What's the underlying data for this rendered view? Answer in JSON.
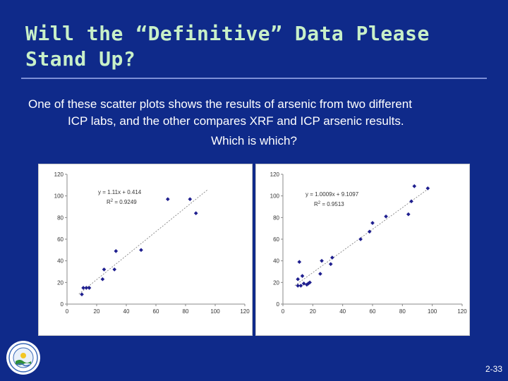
{
  "slide": {
    "title": "Will the “Definitive” Data Please\nStand Up?",
    "intro_line1": "One of these scatter plots shows the results of arsenic from two different",
    "intro_line2": "ICP labs, and the other compares XRF and ICP arsenic results.",
    "question": "Which is which?",
    "slide_number": "2-33",
    "colors": {
      "background": "#0f2a8a",
      "title": "#c8f0c8",
      "point": "#1f1f8f",
      "trendline": "#777777"
    }
  },
  "chart_data": [
    {
      "type": "scatter",
      "xlim": [
        0,
        120
      ],
      "ylim": [
        0,
        120
      ],
      "xticks": [
        0,
        20,
        40,
        60,
        80,
        100,
        120
      ],
      "yticks": [
        0,
        20,
        40,
        60,
        80,
        100,
        120
      ],
      "equation": "y = 1.11x + 0.414",
      "r2_prefix": "R",
      "r2_sup": "2",
      "r2_value": " = 0.9249",
      "trendline": {
        "slope": 1.11,
        "intercept": 0.414,
        "x_range": [
          8,
          95
        ]
      },
      "points": [
        {
          "x": 10,
          "y": 9
        },
        {
          "x": 11,
          "y": 15
        },
        {
          "x": 13,
          "y": 15
        },
        {
          "x": 15,
          "y": 15
        },
        {
          "x": 24,
          "y": 23
        },
        {
          "x": 25,
          "y": 32
        },
        {
          "x": 32,
          "y": 32
        },
        {
          "x": 33,
          "y": 49
        },
        {
          "x": 50,
          "y": 50
        },
        {
          "x": 68,
          "y": 97
        },
        {
          "x": 83,
          "y": 97
        },
        {
          "x": 87,
          "y": 84
        }
      ]
    },
    {
      "type": "scatter",
      "xlim": [
        0,
        120
      ],
      "ylim": [
        0,
        120
      ],
      "xticks": [
        0,
        20,
        40,
        60,
        80,
        100,
        120
      ],
      "yticks": [
        0,
        20,
        40,
        60,
        80,
        100,
        120
      ],
      "equation": "y = 1.0009x + 9.1097",
      "r2_prefix": "R",
      "r2_sup": "2",
      "r2_value": " = 0.9513",
      "trendline": {
        "slope": 1.0009,
        "intercept": 9.1097,
        "x_range": [
          8,
          98
        ]
      },
      "points": [
        {
          "x": 10,
          "y": 17
        },
        {
          "x": 10,
          "y": 23
        },
        {
          "x": 11,
          "y": 39
        },
        {
          "x": 12,
          "y": 17
        },
        {
          "x": 13,
          "y": 26
        },
        {
          "x": 14,
          "y": 19
        },
        {
          "x": 16,
          "y": 18
        },
        {
          "x": 17,
          "y": 19
        },
        {
          "x": 18,
          "y": 20
        },
        {
          "x": 25,
          "y": 28
        },
        {
          "x": 26,
          "y": 40
        },
        {
          "x": 32,
          "y": 37
        },
        {
          "x": 33,
          "y": 43
        },
        {
          "x": 52,
          "y": 60
        },
        {
          "x": 58,
          "y": 67
        },
        {
          "x": 60,
          "y": 75
        },
        {
          "x": 69,
          "y": 81
        },
        {
          "x": 84,
          "y": 83
        },
        {
          "x": 86,
          "y": 95
        },
        {
          "x": 88,
          "y": 109
        },
        {
          "x": 97,
          "y": 107
        }
      ]
    }
  ]
}
